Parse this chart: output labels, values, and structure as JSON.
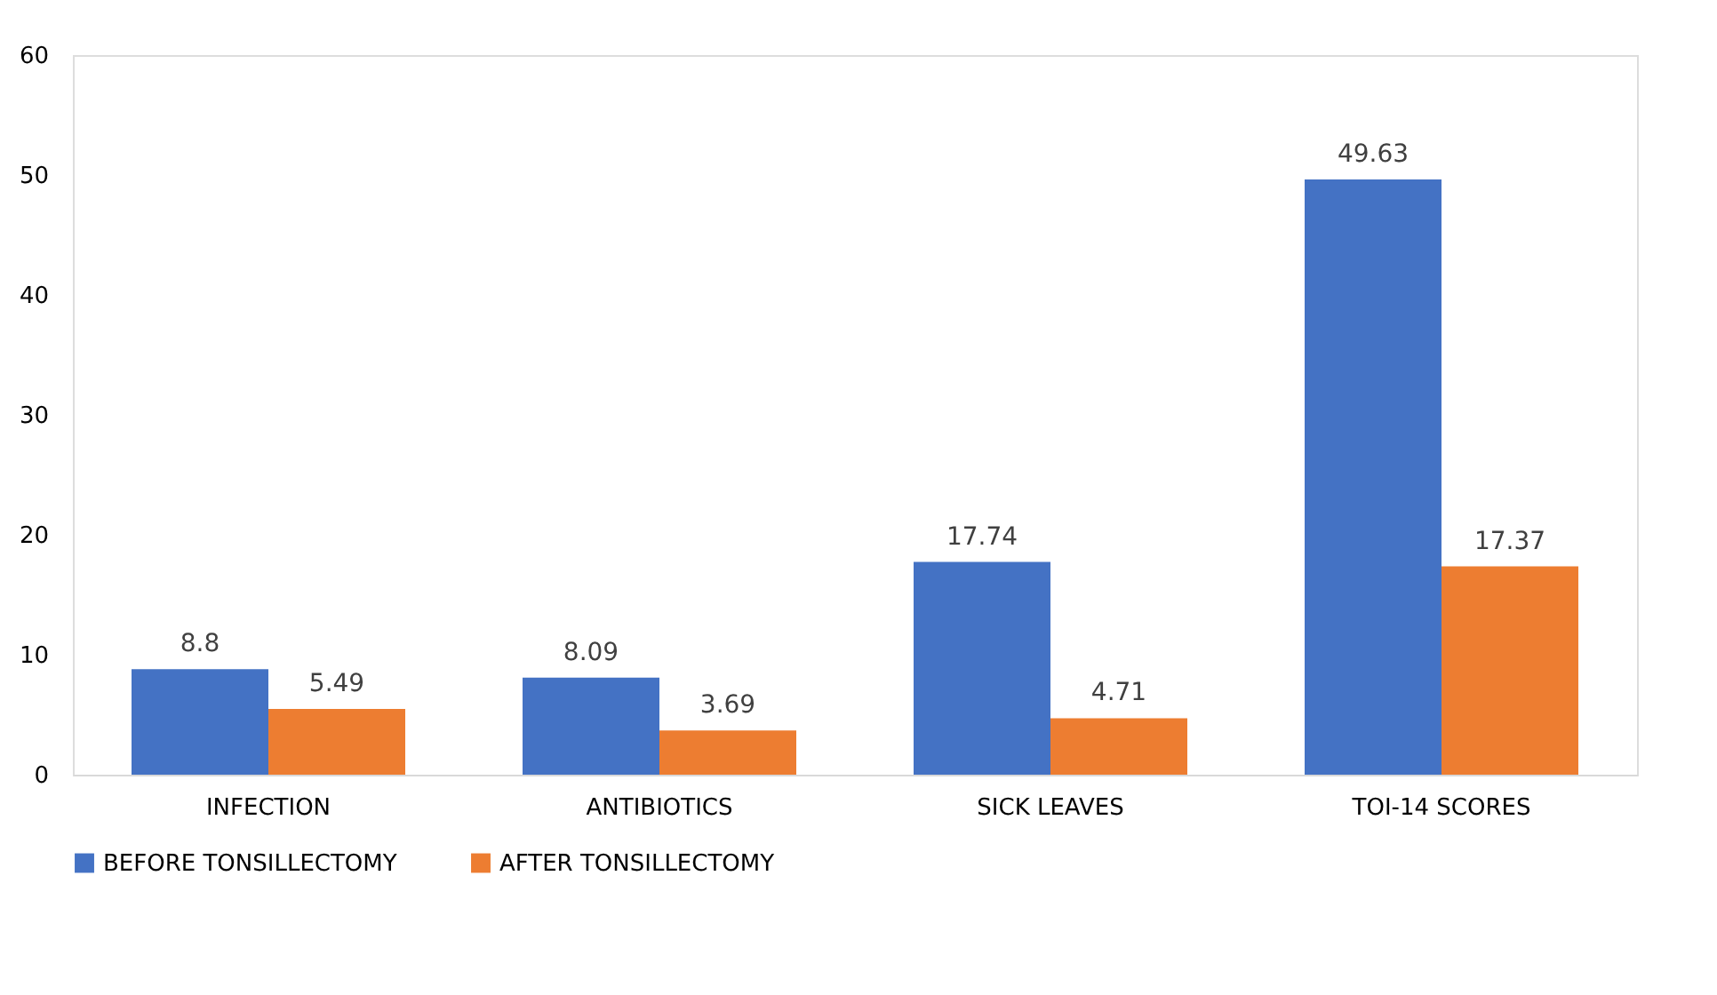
{
  "chart_data": {
    "type": "bar",
    "categories": [
      "INFECTION",
      "ANTIBIOTICS",
      "SICK LEAVES",
      "TOI-14 SCORES"
    ],
    "series": [
      {
        "name": "BEFORE TONSILLECTOMY",
        "color": "#4472c4",
        "values": [
          8.8,
          8.09,
          17.74,
          49.63
        ]
      },
      {
        "name": "AFTER TONSILLECTOMY",
        "color": "#ed7d31",
        "values": [
          5.49,
          3.69,
          4.71,
          17.37
        ]
      }
    ],
    "ylim": [
      0,
      60
    ],
    "yticks": [
      0,
      10,
      20,
      30,
      40,
      50,
      60
    ],
    "grid": false,
    "legend": "bottom",
    "data_labels": true
  }
}
